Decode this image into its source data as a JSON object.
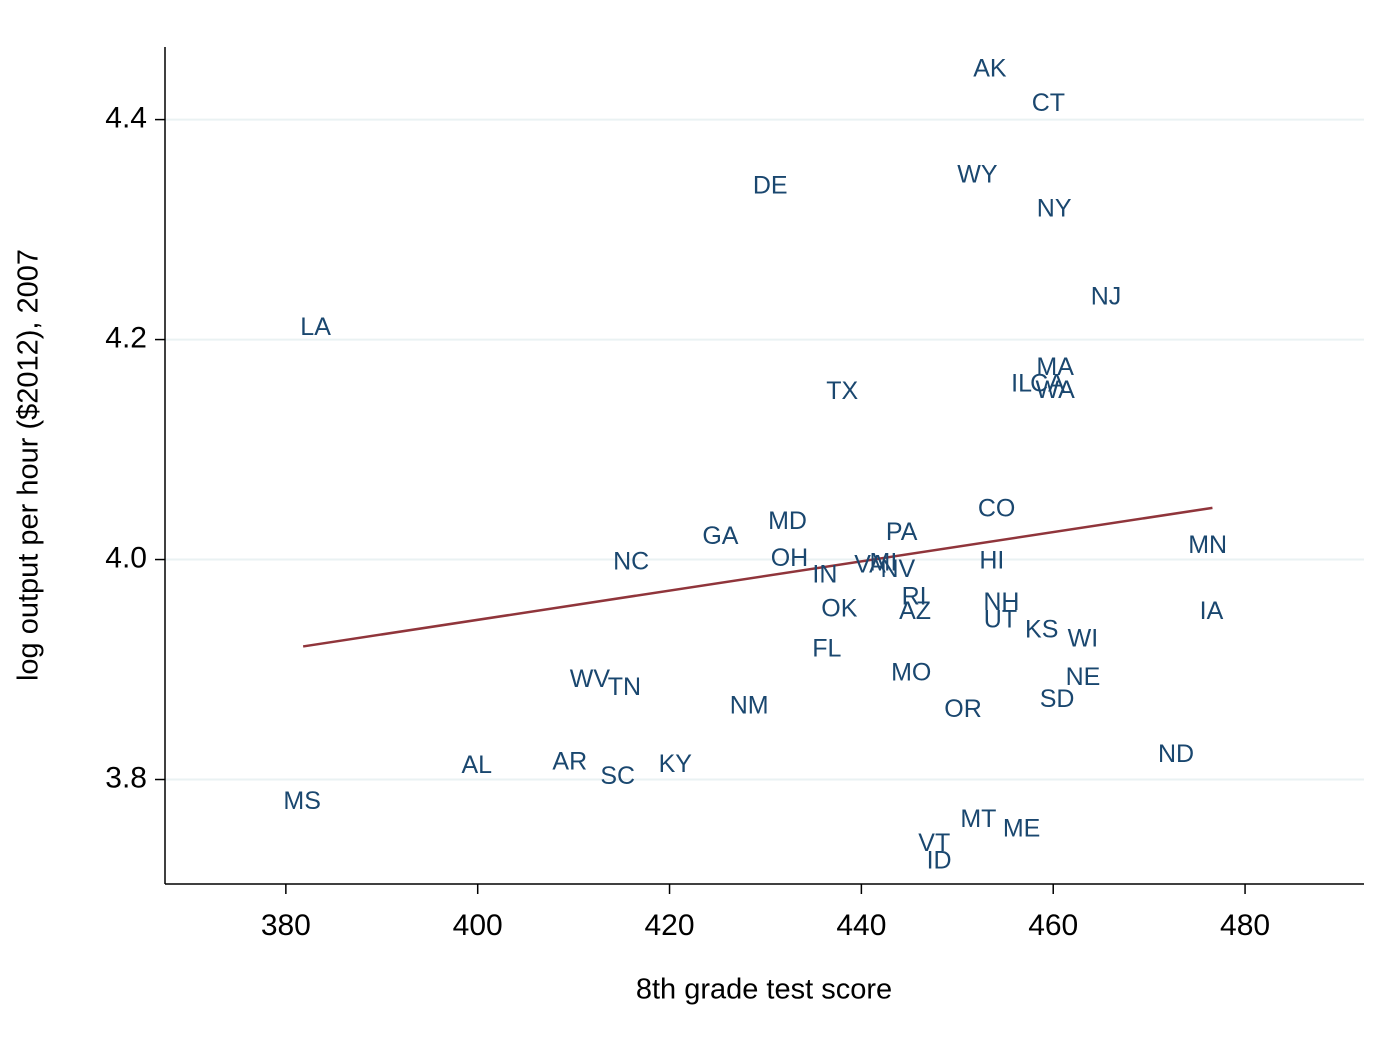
{
  "chart_data": {
    "type": "scatter",
    "xlabel": "8th grade test score",
    "ylabel": "log output per hour ($2012), 2007",
    "xlim": [
      367.4,
      492.4
    ],
    "ylim": [
      3.705,
      4.466
    ],
    "xticks": [
      380,
      400,
      420,
      440,
      460,
      480
    ],
    "yticks": [
      3.8,
      {
        "value": 4,
        "label": "4.0"
      },
      4.2,
      4.4
    ],
    "grid": true,
    "color": "#1a476f",
    "labels": [
      "AK",
      "CT",
      "WY",
      "DE",
      "NY",
      "NJ",
      "LA",
      "MA",
      "IL",
      "CA",
      "WA",
      "TX",
      "CO",
      "PA",
      "GA",
      "MD",
      "MN",
      "NC",
      "OH",
      "HI",
      "VA",
      "MI",
      "NV",
      "IN",
      "RI",
      "NH",
      "AZ",
      "OK",
      "IA",
      "UT",
      "KS",
      "WI",
      "FL",
      "MO",
      "NE",
      "WV",
      "TN",
      "SD",
      "NM",
      "OR",
      "ND",
      "AL",
      "AR",
      "KY",
      "SC",
      "MS",
      "MT",
      "ME",
      "VT",
      "ID"
    ],
    "x": [
      453.4,
      459.5,
      452.1,
      430.5,
      460.1,
      465.5,
      383.1,
      460.2,
      456.7,
      459.4,
      460.2,
      438.0,
      454.1,
      444.2,
      425.3,
      432.3,
      476.1,
      416.0,
      432.5,
      453.6,
      440.9,
      442.3,
      443.8,
      436.2,
      445.5,
      454.6,
      445.6,
      437.7,
      476.5,
      454.5,
      458.8,
      463.1,
      436.4,
      445.2,
      463.1,
      411.7,
      415.3,
      460.4,
      428.3,
      450.6,
      472.8,
      399.9,
      409.6,
      420.6,
      414.6,
      381.7,
      452.2,
      456.7,
      447.6,
      448.1
    ],
    "values": [
      4.445,
      4.414,
      4.349,
      4.339,
      4.318,
      4.238,
      4.21,
      4.174,
      4.159,
      4.159,
      4.153,
      4.152,
      4.045,
      4.024,
      4.02,
      4.034,
      4.012,
      3.997,
      4.0,
      3.998,
      3.994,
      3.996,
      3.99,
      3.985,
      3.965,
      3.96,
      3.952,
      3.954,
      3.952,
      3.944,
      3.935,
      3.927,
      3.918,
      3.896,
      3.892,
      3.89,
      3.883,
      3.872,
      3.866,
      3.863,
      3.822,
      3.812,
      3.815,
      3.813,
      3.802,
      3.779,
      3.763,
      3.754,
      3.741,
      3.725
    ],
    "fit_line": {
      "color": "#90353b",
      "x": [
        381.8,
        476.6
      ],
      "values": [
        3.921,
        4.047
      ]
    }
  }
}
